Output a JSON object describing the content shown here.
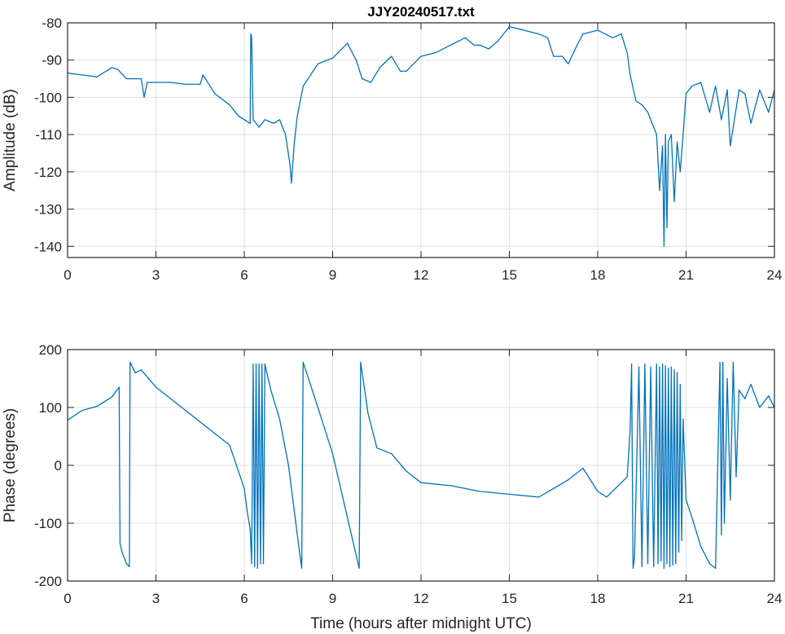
{
  "chart_data": [
    {
      "type": "line",
      "title": "JJY20240517.txt",
      "xlabel": "",
      "ylabel": "Amplitude (dB)",
      "xlim": [
        0,
        24
      ],
      "ylim": [
        -143,
        -80
      ],
      "xticks": [
        "0",
        "3",
        "6",
        "9",
        "12",
        "15",
        "18",
        "21",
        "24"
      ],
      "yticks": [
        "-80",
        "-90",
        "-100",
        "-110",
        "-120",
        "-130",
        "-140"
      ],
      "grid": true,
      "color": "#0072BD",
      "x": [
        0,
        0.5,
        1,
        1.5,
        1.7,
        2,
        2.5,
        2.6,
        2.7,
        3,
        3.5,
        4,
        4.5,
        4.6,
        5,
        5.5,
        5.8,
        6,
        6.2,
        6.22,
        6.25,
        6.3,
        6.5,
        6.7,
        7,
        7.2,
        7.4,
        7.55,
        7.6,
        7.7,
        7.8,
        8,
        8.5,
        9,
        9.5,
        9.8,
        10,
        10.3,
        10.6,
        11,
        11.3,
        11.5,
        12,
        12.5,
        13,
        13.5,
        13.8,
        14,
        14.3,
        14.6,
        15,
        15.5,
        16,
        16.3,
        16.5,
        16.8,
        17,
        17.3,
        17.5,
        18,
        18.5,
        18.8,
        19,
        19.1,
        19.3,
        19.5,
        19.7,
        19.9,
        20,
        20.1,
        20.2,
        20.25,
        20.3,
        20.35,
        20.4,
        20.5,
        20.6,
        20.7,
        20.8,
        20.9,
        21,
        21.2,
        21.5,
        21.8,
        22,
        22.2,
        22.4,
        22.5,
        22.8,
        23,
        23.2,
        23.5,
        23.8,
        24
      ],
      "values": [
        -93.5,
        -94,
        -94.5,
        -92,
        -92.5,
        -95,
        -95,
        -100,
        -96,
        -96,
        -96,
        -96.5,
        -96.5,
        -94,
        -99,
        -102,
        -105,
        -106,
        -107,
        -83,
        -84,
        -106,
        -108,
        -106,
        -107,
        -106,
        -110,
        -118,
        -123,
        -112,
        -105,
        -97,
        -91,
        -89.5,
        -85.5,
        -90,
        -95,
        -96,
        -92,
        -89,
        -93,
        -93,
        -89,
        -88,
        -86,
        -84,
        -86,
        -86,
        -87,
        -85,
        -81,
        -82,
        -83,
        -84,
        -89,
        -89,
        -91,
        -86,
        -83,
        -82,
        -84,
        -83,
        -88,
        -94,
        -101,
        -102,
        -104,
        -108,
        -110,
        -125,
        -113,
        -140,
        -110,
        -135,
        -112,
        -110,
        -128,
        -112,
        -120,
        -110,
        -99,
        -97,
        -96,
        -104,
        -97,
        -106,
        -98,
        -113,
        -98,
        -99,
        -107,
        -98,
        -104,
        -98
      ]
    },
    {
      "type": "line",
      "title": "",
      "xlabel": "Time (hours after midnight UTC)",
      "ylabel": "Phase (degrees)",
      "xlim": [
        0,
        24
      ],
      "ylim": [
        -200,
        200
      ],
      "xticks": [
        "0",
        "3",
        "6",
        "9",
        "12",
        "15",
        "18",
        "21",
        "24"
      ],
      "yticks": [
        "200",
        "100",
        "0",
        "-100",
        "-200"
      ],
      "grid": true,
      "color": "#0072BD",
      "x": [
        0,
        0.5,
        1,
        1.5,
        1.75,
        1.78,
        1.85,
        2.0,
        2.1,
        2.12,
        2.3,
        2.5,
        3,
        4,
        5,
        5.5,
        6,
        6.1,
        6.2,
        6.25,
        6.3,
        6.35,
        6.4,
        6.45,
        6.5,
        6.55,
        6.6,
        6.65,
        6.7,
        6.9,
        7.2,
        7.5,
        7.8,
        7.95,
        8.0,
        8.5,
        9,
        9.5,
        9.9,
        9.95,
        10.2,
        10.5,
        11,
        11.5,
        12,
        13,
        14,
        15,
        16,
        16.5,
        17,
        17.5,
        18,
        18.3,
        18.8,
        19,
        19.1,
        19.15,
        19.2,
        19.25,
        19.4,
        19.5,
        19.6,
        19.7,
        19.8,
        19.9,
        20,
        20.05,
        20.1,
        20.15,
        20.2,
        20.25,
        20.3,
        20.35,
        20.4,
        20.45,
        20.5,
        20.55,
        20.6,
        20.65,
        20.7,
        20.75,
        20.8,
        20.85,
        20.9,
        21,
        21.2,
        21.5,
        21.8,
        22,
        22.15,
        22.2,
        22.25,
        22.3,
        22.4,
        22.5,
        22.6,
        22.7,
        22.8,
        23,
        23.2,
        23.5,
        23.8,
        24
      ],
      "values": [
        78,
        95,
        102,
        118,
        135,
        -135,
        -150,
        -170,
        -175,
        178,
        160,
        165,
        135,
        95,
        55,
        35,
        -40,
        -80,
        -110,
        -170,
        175,
        -175,
        175,
        -178,
        175,
        -170,
        175,
        -170,
        175,
        130,
        80,
        0,
        -120,
        -178,
        178,
        100,
        20,
        -90,
        -178,
        178,
        90,
        30,
        20,
        -10,
        -30,
        -35,
        -45,
        -50,
        -55,
        -40,
        -25,
        -5,
        -45,
        -55,
        -30,
        -20,
        60,
        175,
        -178,
        -160,
        170,
        -175,
        175,
        -170,
        170,
        -175,
        175,
        -170,
        170,
        -165,
        175,
        -178,
        172,
        -170,
        168,
        -175,
        170,
        -172,
        165,
        -170,
        160,
        -150,
        140,
        -130,
        80,
        -60,
        -90,
        -140,
        -170,
        -178,
        178,
        -120,
        178,
        -100,
        150,
        -60,
        178,
        -20,
        130,
        115,
        140,
        100,
        120,
        100
      ]
    }
  ]
}
